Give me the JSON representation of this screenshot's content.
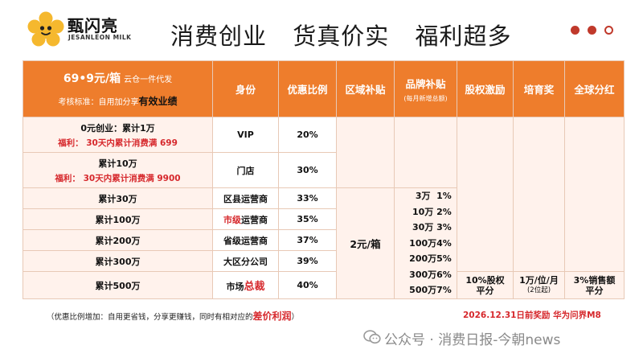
{
  "brand": {
    "name_cn": "甄闪亮",
    "name_en": "JESANLEON MILK"
  },
  "headline": [
    "消费创业",
    "货真价实",
    "福利超多"
  ],
  "table": {
    "header": {
      "price": "69•9元/箱",
      "price_note": "云仓一件代发",
      "standard_prefix": "考核标准：自用加分享",
      "standard_bold": "有效业绩",
      "columns": [
        "身份",
        "优惠比例",
        "区域补贴",
        "品牌补贴",
        "股权激励",
        "培育奖",
        "全球分红"
      ],
      "brand_sub": "(每月新增总额)"
    },
    "rows": [
      {
        "level": "0元创业：累计1万",
        "fuli": "福利：  30天内累计消费满 699",
        "identity": "VIP",
        "rate": "20%"
      },
      {
        "level": "累计10万",
        "fuli": "福利：  30天内累计消费满 9900",
        "identity": "门店",
        "rate": "30%"
      },
      {
        "level": "累计30万",
        "identity": "区县运营商",
        "rate": "33%"
      },
      {
        "level": "累计100万",
        "identity_red": "市级",
        "identity_rest": "运营商",
        "rate": "35%"
      },
      {
        "level": "累计200万",
        "identity": "省级运营商",
        "rate": "37%"
      },
      {
        "level": "累计300万",
        "identity": "大区分公司",
        "rate": "39%"
      },
      {
        "level": "累计500万",
        "identity_pre": "市场",
        "identity_red": "总裁",
        "rate": "40%"
      }
    ],
    "region_subsidy": "2元/箱",
    "brand_subsidy": [
      {
        "amount": "3万",
        "pct": "1%"
      },
      {
        "amount": "10万",
        "pct": "2%"
      },
      {
        "amount": "30万",
        "pct": "3%"
      },
      {
        "amount": "100万",
        "pct": "4%"
      },
      {
        "amount": "200万",
        "pct": "5%"
      },
      {
        "amount": "300万",
        "pct": "6%"
      },
      {
        "amount": "500万",
        "pct": "7%"
      }
    ],
    "equity": [
      "10%股权",
      "平分"
    ],
    "cultivation": [
      "1万/位/月",
      "(2位起)"
    ],
    "dividend": [
      "3%销售额",
      "平分"
    ]
  },
  "footer": {
    "note": "（优惠比例增加：自用更省钱，分享更赚钱，同时有相对应的",
    "note_bold": "差价利润",
    "note_end": "）",
    "deadline": "2026.12.31日前奖励  华为问界M8",
    "watermark": "公众号 · 消费日报-今朝news"
  }
}
